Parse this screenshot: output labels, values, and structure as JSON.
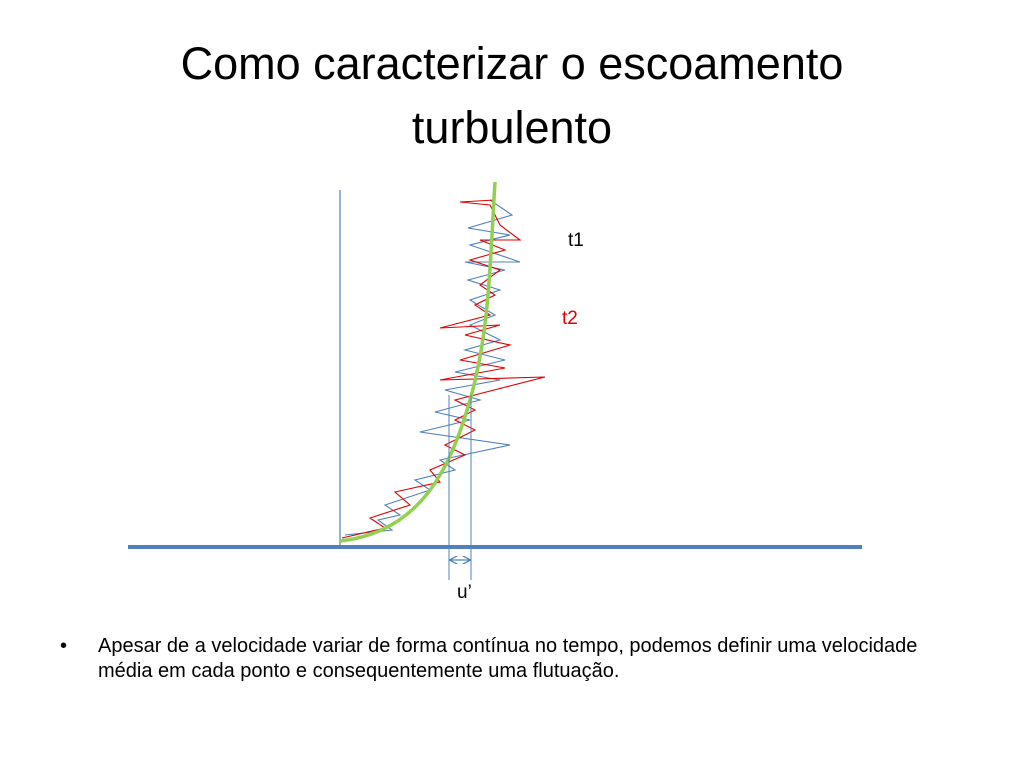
{
  "title": "Como caracterizar o escoamento turbulento",
  "diagram": {
    "labels": {
      "t1": "t1",
      "t2": "t2",
      "fluctuation": "u’"
    }
  },
  "bullets": [
    "Apesar de a velocidade variar de forma contínua no tempo, podemos definir uma velocidade média em cada ponto e consequentemente uma flutuação."
  ]
}
